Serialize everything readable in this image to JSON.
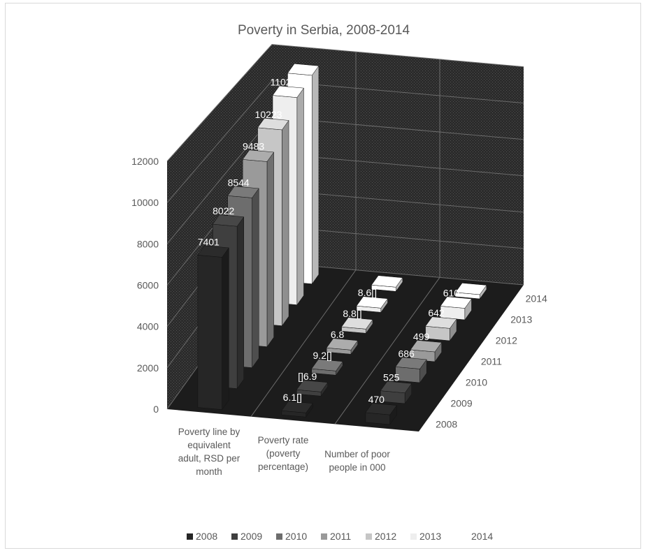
{
  "chart_data": {
    "type": "bar",
    "title": "Poverty in Serbia, 2008-2014",
    "categories": [
      "Poverty line by equivalent adult, RSD per month",
      "Poverty rate (poverty percentage)",
      "Number of poor people in 000"
    ],
    "series": [
      {
        "name": "2008",
        "values": [
          7401,
          6.1,
          470
        ],
        "labels": [
          "7401",
          "6.1[]",
          "470"
        ],
        "color": "#262626"
      },
      {
        "name": "2009",
        "values": [
          8022,
          6.9,
          525
        ],
        "labels": [
          "8022",
          "[]6.9",
          "525"
        ],
        "color": "#3f3f3f"
      },
      {
        "name": "2010",
        "values": [
          8544,
          9.2,
          686
        ],
        "labels": [
          "8544",
          "9.2[]",
          "686"
        ],
        "color": "#6d6d6d"
      },
      {
        "name": "2011",
        "values": [
          9483,
          6.8,
          499
        ],
        "labels": [
          "9483",
          "6.8",
          "499"
        ],
        "color": "#9a9a9a"
      },
      {
        "name": "2012",
        "values": [
          10223,
          8.8,
          642
        ],
        "labels": [
          "10223",
          "8.8[]",
          "642"
        ],
        "color": "#c6c6c6"
      },
      {
        "name": "2013",
        "values": [
          11020,
          8.6,
          610
        ],
        "labels": [
          "11020",
          "8.6[]",
          "610"
        ],
        "color": "#eeeeee"
      },
      {
        "name": "2014",
        "values": [
          11300,
          0,
          0
        ],
        "labels": [
          "",
          "",
          ""
        ],
        "color": "#ffffff"
      }
    ],
    "y_ticks": [
      0,
      2000,
      4000,
      6000,
      8000,
      10000,
      12000
    ],
    "ylim": [
      0,
      12000
    ],
    "depth_labels": [
      "2008",
      "2009",
      "2010",
      "2011",
      "2012",
      "2013",
      "2014"
    ],
    "grid": true,
    "legend_position": "bottom"
  }
}
